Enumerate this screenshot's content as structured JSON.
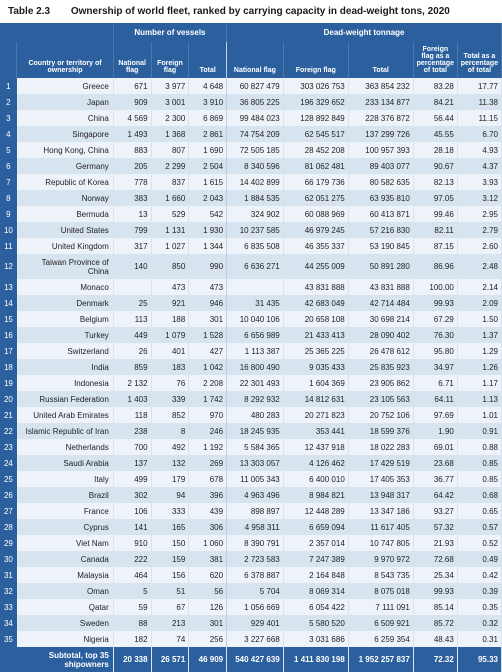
{
  "title": {
    "number": "Table 2.3",
    "text": "Ownership of world fleet, ranked by carrying capacity in dead-weight tons, 2020"
  },
  "colors": {
    "header_bg": "#2b5f9e",
    "header_fg": "#ffffff",
    "row_odd_bg": "#eef3fa",
    "row_even_bg": "#d8e3f0",
    "rank_bg": "#2b5f9e",
    "text": "#222222",
    "border": "#d8e3f0"
  },
  "typography": {
    "title_fontsize_pt": 10,
    "header_fontsize_pt": 7,
    "body_fontsize_pt": 8,
    "font_family": "Arial"
  },
  "header": {
    "group_vessels": "Number of vessels",
    "group_dwt": "Dead-weight tonnage",
    "country": "Country or territory of ownership",
    "nat_flag": "National flag",
    "for_flag": "Foreign flag",
    "total": "Total",
    "nat_flag_t": "National flag",
    "for_flag_t": "Foreign flag",
    "total_t": "Total",
    "pct_foreign": "Foreign flag as a percentage of total",
    "pct_total": "Total as a percentage of total"
  },
  "rows": [
    {
      "rank": "1",
      "name": "Greece",
      "nf": "671",
      "ff": "3 977",
      "tv": "4 648",
      "nft": "60 827 479",
      "fft": "303 026 753",
      "tt": "363 854 232",
      "pf": "83.28",
      "pt": "17.77"
    },
    {
      "rank": "2",
      "name": "Japan",
      "nf": "909",
      "ff": "3 001",
      "tv": "3 910",
      "nft": "36 805 225",
      "fft": "196 329 652",
      "tt": "233 134 877",
      "pf": "84.21",
      "pt": "11.38"
    },
    {
      "rank": "3",
      "name": "China",
      "nf": "4 569",
      "ff": "2 300",
      "tv": "6 869",
      "nft": "99 484 023",
      "fft": "128 892 849",
      "tt": "228 376 872",
      "pf": "56.44",
      "pt": "11.15"
    },
    {
      "rank": "4",
      "name": "Singapore",
      "nf": "1 493",
      "ff": "1 368",
      "tv": "2 861",
      "nft": "74 754 209",
      "fft": "62 545 517",
      "tt": "137 299 726",
      "pf": "45.55",
      "pt": "6.70"
    },
    {
      "rank": "5",
      "name": "Hong Kong, China",
      "nf": "883",
      "ff": "807",
      "tv": "1 690",
      "nft": "72 505 185",
      "fft": "28 452 208",
      "tt": "100 957 393",
      "pf": "28.18",
      "pt": "4.93"
    },
    {
      "rank": "6",
      "name": "Germany",
      "nf": "205",
      "ff": "2 299",
      "tv": "2 504",
      "nft": "8 340 596",
      "fft": "81 062 481",
      "tt": "89 403 077",
      "pf": "90.67",
      "pt": "4.37"
    },
    {
      "rank": "7",
      "name": "Republic of Korea",
      "nf": "778",
      "ff": "837",
      "tv": "1 615",
      "nft": "14 402 899",
      "fft": "66 179 736",
      "tt": "80 582 635",
      "pf": "82.13",
      "pt": "3.93"
    },
    {
      "rank": "8",
      "name": "Norway",
      "nf": "383",
      "ff": "1 660",
      "tv": "2 043",
      "nft": "1 884 535",
      "fft": "62 051 275",
      "tt": "63 935 810",
      "pf": "97.05",
      "pt": "3.12"
    },
    {
      "rank": "9",
      "name": "Bermuda",
      "nf": "13",
      "ff": "529",
      "tv": "542",
      "nft": "324 902",
      "fft": "60 088 969",
      "tt": "60 413 871",
      "pf": "99.46",
      "pt": "2.95"
    },
    {
      "rank": "10",
      "name": "United States",
      "nf": "799",
      "ff": "1 131",
      "tv": "1 930",
      "nft": "10 237 585",
      "fft": "46 979 245",
      "tt": "57 216 830",
      "pf": "82.11",
      "pt": "2.79"
    },
    {
      "rank": "11",
      "name": "United Kingdom",
      "nf": "317",
      "ff": "1 027",
      "tv": "1 344",
      "nft": "6 835 508",
      "fft": "46 355 337",
      "tt": "53 190 845",
      "pf": "87.15",
      "pt": "2.60"
    },
    {
      "rank": "12",
      "name": "Taiwan Province of China",
      "nf": "140",
      "ff": "850",
      "tv": "990",
      "nft": "6 636 271",
      "fft": "44 255 009",
      "tt": "50 891 280",
      "pf": "86.96",
      "pt": "2.48"
    },
    {
      "rank": "13",
      "name": "Monaco",
      "nf": "",
      "ff": "473",
      "tv": "473",
      "nft": "",
      "fft": "43 831 888",
      "tt": "43 831 888",
      "pf": "100.00",
      "pt": "2.14"
    },
    {
      "rank": "14",
      "name": "Denmark",
      "nf": "25",
      "ff": "921",
      "tv": "946",
      "nft": "31 435",
      "fft": "42 683 049",
      "tt": "42 714 484",
      "pf": "99.93",
      "pt": "2.09"
    },
    {
      "rank": "15",
      "name": "Belgium",
      "nf": "113",
      "ff": "188",
      "tv": "301",
      "nft": "10 040 106",
      "fft": "20 658 108",
      "tt": "30 698 214",
      "pf": "67.29",
      "pt": "1.50"
    },
    {
      "rank": "16",
      "name": "Turkey",
      "nf": "449",
      "ff": "1 079",
      "tv": "1 528",
      "nft": "6 656 989",
      "fft": "21 433 413",
      "tt": "28 090 402",
      "pf": "76.30",
      "pt": "1.37"
    },
    {
      "rank": "17",
      "name": "Switzerland",
      "nf": "26",
      "ff": "401",
      "tv": "427",
      "nft": "1 113 387",
      "fft": "25 365 225",
      "tt": "26 478 612",
      "pf": "95.80",
      "pt": "1.29"
    },
    {
      "rank": "18",
      "name": "India",
      "nf": "859",
      "ff": "183",
      "tv": "1 042",
      "nft": "16 800 490",
      "fft": "9 035 433",
      "tt": "25 835 923",
      "pf": "34.97",
      "pt": "1.26"
    },
    {
      "rank": "19",
      "name": "Indonesia",
      "nf": "2 132",
      "ff": "76",
      "tv": "2 208",
      "nft": "22 301 493",
      "fft": "1 604 369",
      "tt": "23 905 862",
      "pf": "6.71",
      "pt": "1.17"
    },
    {
      "rank": "20",
      "name": "Russian Federation",
      "nf": "1 403",
      "ff": "339",
      "tv": "1 742",
      "nft": "8 292 932",
      "fft": "14 812 631",
      "tt": "23 105 563",
      "pf": "64.11",
      "pt": "1.13"
    },
    {
      "rank": "21",
      "name": "United Arab Emirates",
      "nf": "118",
      "ff": "852",
      "tv": "970",
      "nft": "480 283",
      "fft": "20 271 823",
      "tt": "20 752 106",
      "pf": "97.69",
      "pt": "1.01"
    },
    {
      "rank": "22",
      "name": "Islamic Republic of Iran",
      "nf": "238",
      "ff": "8",
      "tv": "246",
      "nft": "18 245 935",
      "fft": "353 441",
      "tt": "18 599 376",
      "pf": "1.90",
      "pt": "0.91"
    },
    {
      "rank": "23",
      "name": "Netherlands",
      "nf": "700",
      "ff": "492",
      "tv": "1 192",
      "nft": "5 584 365",
      "fft": "12 437 918",
      "tt": "18 022 283",
      "pf": "69.01",
      "pt": "0.88"
    },
    {
      "rank": "24",
      "name": "Saudi Arabia",
      "nf": "137",
      "ff": "132",
      "tv": "269",
      "nft": "13 303 057",
      "fft": "4 126 462",
      "tt": "17 429 519",
      "pf": "23.68",
      "pt": "0.85"
    },
    {
      "rank": "25",
      "name": "Italy",
      "nf": "499",
      "ff": "179",
      "tv": "678",
      "nft": "11 005 343",
      "fft": "6 400 010",
      "tt": "17 405 353",
      "pf": "36.77",
      "pt": "0.85"
    },
    {
      "rank": "26",
      "name": "Brazil",
      "nf": "302",
      "ff": "94",
      "tv": "396",
      "nft": "4 963 496",
      "fft": "8 984 821",
      "tt": "13 948 317",
      "pf": "64.42",
      "pt": "0.68"
    },
    {
      "rank": "27",
      "name": "France",
      "nf": "106",
      "ff": "333",
      "tv": "439",
      "nft": "898 897",
      "fft": "12 448 289",
      "tt": "13 347 186",
      "pf": "93.27",
      "pt": "0.65"
    },
    {
      "rank": "28",
      "name": "Cyprus",
      "nf": "141",
      "ff": "165",
      "tv": "306",
      "nft": "4 958 311",
      "fft": "6 659 094",
      "tt": "11 617 405",
      "pf": "57.32",
      "pt": "0.57"
    },
    {
      "rank": "29",
      "name": "Viet Nam",
      "nf": "910",
      "ff": "150",
      "tv": "1 060",
      "nft": "8 390 791",
      "fft": "2 357 014",
      "tt": "10 747 805",
      "pf": "21.93",
      "pt": "0.52"
    },
    {
      "rank": "30",
      "name": "Canada",
      "nf": "222",
      "ff": "159",
      "tv": "381",
      "nft": "2 723 583",
      "fft": "7 247 389",
      "tt": "9 970 972",
      "pf": "72.68",
      "pt": "0.49"
    },
    {
      "rank": "31",
      "name": "Malaysia",
      "nf": "464",
      "ff": "156",
      "tv": "620",
      "nft": "6 378 887",
      "fft": "2 164 848",
      "tt": "8 543 735",
      "pf": "25.34",
      "pt": "0.42"
    },
    {
      "rank": "32",
      "name": "Oman",
      "nf": "5",
      "ff": "51",
      "tv": "56",
      "nft": "5 704",
      "fft": "8 069 314",
      "tt": "8 075 018",
      "pf": "99.93",
      "pt": "0.39"
    },
    {
      "rank": "33",
      "name": "Qatar",
      "nf": "59",
      "ff": "67",
      "tv": "126",
      "nft": "1 056 669",
      "fft": "6 054 422",
      "tt": "7 111 091",
      "pf": "85.14",
      "pt": "0.35"
    },
    {
      "rank": "34",
      "name": "Sweden",
      "nf": "88",
      "ff": "213",
      "tv": "301",
      "nft": "929 401",
      "fft": "5 580 520",
      "tt": "6 509 921",
      "pf": "85.72",
      "pt": "0.32"
    },
    {
      "rank": "35",
      "name": "Nigeria",
      "nf": "182",
      "ff": "74",
      "tv": "256",
      "nft": "3 227 668",
      "fft": "3 031 686",
      "tt": "6 259 354",
      "pf": "48.43",
      "pt": "0.31"
    }
  ],
  "subtotal": {
    "label": "Subtotal, top 35 shipowners",
    "nf": "20 338",
    "ff": "26 571",
    "tv": "46 909",
    "nft": "540 427 639",
    "fft": "1 411 830 198",
    "tt": "1 952 257 837",
    "pf": "72.32",
    "pt": "95.33"
  }
}
